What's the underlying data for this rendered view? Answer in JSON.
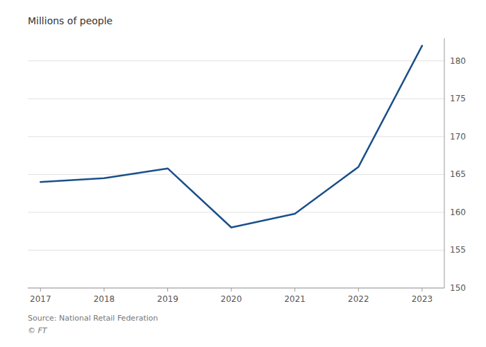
{
  "chart_data": {
    "type": "line",
    "ylabel": "Millions of people",
    "annotations": [
      "Source: National Retail Federation",
      "© FT"
    ],
    "x": [
      2017,
      2018,
      2019,
      2020,
      2021,
      2022,
      2023
    ],
    "values": [
      164.0,
      164.5,
      165.8,
      158.0,
      159.8,
      166.0,
      182.0
    ],
    "color": "#1a4f8a",
    "xlim": [
      2016.8,
      2023.35
    ],
    "xticks": [
      2017,
      2018,
      2019,
      2020,
      2021,
      2022,
      2023
    ],
    "ylim": [
      150,
      183
    ],
    "yticks": [
      150,
      155,
      160,
      165,
      170,
      175,
      180
    ],
    "grid": true
  }
}
